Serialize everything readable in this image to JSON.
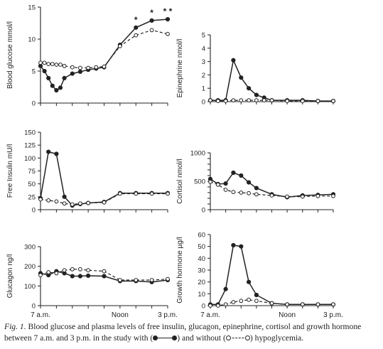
{
  "chart_data": [
    {
      "id": "glucose",
      "type": "line",
      "ylabel": "Blood glucose mmol/l",
      "ylim": [
        0,
        15
      ],
      "yticks": [
        0,
        5,
        10,
        15
      ],
      "x": [
        7.0,
        7.25,
        7.5,
        7.75,
        8.0,
        8.25,
        8.5,
        9.0,
        9.5,
        10.0,
        10.5,
        11.0,
        12.0,
        13.0,
        14.0,
        15.0
      ],
      "series": [
        {
          "style": "solid-filled",
          "values": [
            5.8,
            5.0,
            3.9,
            2.7,
            2.0,
            2.4,
            3.9,
            4.6,
            4.9,
            5.2,
            5.4,
            5.6,
            9.1,
            11.8,
            12.9,
            13.1
          ]
        },
        {
          "style": "dashed-open",
          "values": [
            6.3,
            6.3,
            6.1,
            6.1,
            6.0,
            6.0,
            5.8,
            5.6,
            5.5,
            5.5,
            5.6,
            5.7,
            8.9,
            10.6,
            11.4,
            10.8
          ]
        }
      ],
      "annotations": [
        {
          "x": 13.0,
          "text": "*"
        },
        {
          "x": 14.0,
          "text": "*"
        },
        {
          "x": 15.0,
          "text": "* *"
        }
      ],
      "show_xtick_labels": false
    },
    {
      "id": "epinephrine",
      "type": "line",
      "ylabel": "Epinephrine nmol/l",
      "ylim": [
        0,
        5
      ],
      "yticks": [
        0,
        1,
        2,
        3,
        4,
        5
      ],
      "x": [
        7.0,
        7.5,
        8.0,
        8.5,
        9.0,
        9.5,
        10.0,
        10.5,
        11.0,
        12.0,
        13.0,
        14.0,
        15.0
      ],
      "series": [
        {
          "style": "solid-filled",
          "values": [
            0.1,
            0.1,
            0.1,
            3.1,
            1.8,
            1.0,
            0.5,
            0.3,
            0.1,
            0.1,
            0.1,
            0.05,
            0.05
          ]
        },
        {
          "style": "dashed-open",
          "values": [
            0.1,
            0.05,
            0.05,
            0.1,
            0.1,
            0.1,
            0.1,
            0.1,
            0.1,
            0.05,
            0.05,
            0.05,
            0.05
          ]
        }
      ],
      "show_xtick_labels": false
    },
    {
      "id": "insulin",
      "type": "line",
      "ylabel": "Free Insulin mU/l",
      "ylim": [
        0,
        150
      ],
      "yticks": [
        0,
        25,
        50,
        75,
        100,
        125,
        150
      ],
      "x": [
        7.0,
        7.5,
        8.0,
        8.5,
        9.0,
        9.5,
        10.0,
        11.0,
        12.0,
        13.0,
        14.0,
        15.0
      ],
      "series": [
        {
          "style": "solid-filled",
          "values": [
            22,
            112,
            108,
            25,
            8,
            11,
            13,
            15,
            32,
            32,
            32,
            32
          ]
        },
        {
          "style": "dashed-open",
          "values": [
            20,
            18,
            16,
            12,
            10,
            12,
            13,
            14,
            31,
            31,
            31,
            31
          ]
        }
      ],
      "show_xtick_labels": false
    },
    {
      "id": "cortisol",
      "type": "line",
      "ylabel": "Cortisol nmol/l",
      "ylim": [
        0,
        1000
      ],
      "yticks": [
        0,
        100,
        200,
        300,
        400,
        500,
        600,
        700,
        800,
        900,
        1000
      ],
      "ytick_labels": [
        "0",
        "",
        "",
        "",
        "",
        "500",
        "",
        "",
        "",
        "",
        "1000"
      ],
      "x": [
        7.0,
        7.5,
        8.0,
        8.5,
        9.0,
        9.5,
        10.0,
        11.0,
        12.0,
        13.0,
        14.0,
        15.0
      ],
      "series": [
        {
          "style": "solid-filled",
          "values": [
            540,
            450,
            460,
            650,
            600,
            480,
            380,
            270,
            220,
            250,
            260,
            270
          ]
        },
        {
          "style": "dashed-open",
          "values": [
            490,
            440,
            350,
            310,
            300,
            290,
            270,
            250,
            230,
            230,
            240,
            240
          ]
        }
      ],
      "show_xtick_labels": false
    },
    {
      "id": "glucagon",
      "type": "line",
      "ylabel": "Glucagon ng/l",
      "ylim": [
        0,
        300
      ],
      "yticks": [
        0,
        100,
        200,
        300
      ],
      "x": [
        7.0,
        7.5,
        8.0,
        8.5,
        9.0,
        9.5,
        10.0,
        11.0,
        12.0,
        13.0,
        14.0,
        15.0
      ],
      "series": [
        {
          "style": "solid-filled",
          "values": [
            165,
            155,
            175,
            165,
            150,
            150,
            152,
            150,
            125,
            125,
            120,
            130
          ]
        },
        {
          "style": "dashed-open",
          "values": [
            155,
            170,
            165,
            180,
            185,
            185,
            180,
            175,
            130,
            130,
            130,
            135
          ]
        }
      ],
      "show_xtick_labels": true
    },
    {
      "id": "growth-hormone",
      "type": "line",
      "ylabel": "Growth hormone µg/l",
      "ylim": [
        0,
        60
      ],
      "yticks": [
        0,
        10,
        20,
        30,
        40,
        50,
        60
      ],
      "x": [
        7.0,
        7.5,
        8.0,
        8.5,
        9.0,
        9.5,
        10.0,
        11.0,
        12.0,
        13.0,
        14.0,
        15.0
      ],
      "series": [
        {
          "style": "solid-filled",
          "values": [
            1,
            1,
            14,
            51,
            50,
            20,
            9,
            2,
            1,
            1,
            1,
            1
          ]
        },
        {
          "style": "dashed-open",
          "values": [
            0,
            0,
            1,
            3,
            4,
            5,
            4,
            2,
            1,
            1,
            1,
            1
          ]
        }
      ],
      "show_xtick_labels": true
    }
  ],
  "x_axis": {
    "range": [
      7,
      15
    ],
    "ticks": [
      7,
      8,
      9,
      10,
      11,
      12,
      13,
      14,
      15
    ],
    "labels": [
      {
        "x": 7,
        "text": "7 a.m."
      },
      {
        "x": 12,
        "text": "Noon"
      },
      {
        "x": 15,
        "text": "3 p.m."
      }
    ]
  },
  "caption": {
    "label": "Fig. 1.",
    "text_before": "Blood glucose and plasma levels of free insulin, glucagon, epinephrine, cortisol and growth hormone between 7 a.m. and 3 p.m. in the study with (",
    "text_middle": ") and without (",
    "text_after": ") hypoglycemia."
  }
}
